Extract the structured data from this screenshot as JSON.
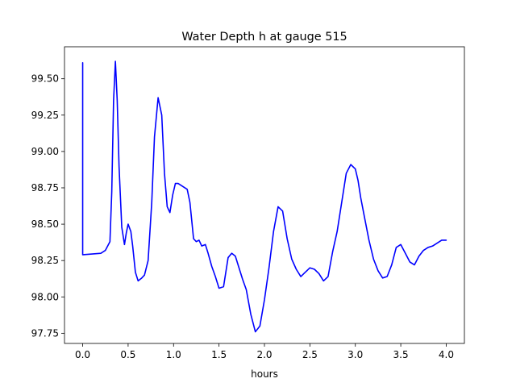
{
  "chart_data": {
    "type": "line",
    "title": "Water Depth h at gauge 515",
    "xlabel": "hours",
    "ylabel": "",
    "xlim": [
      -0.2,
      4.2
    ],
    "ylim": [
      97.68,
      99.72
    ],
    "xticks": [
      0.0,
      0.5,
      1.0,
      1.5,
      2.0,
      2.5,
      3.0,
      3.5,
      4.0
    ],
    "xtick_labels": [
      "0.0",
      "0.5",
      "1.0",
      "1.5",
      "2.0",
      "2.5",
      "3.0",
      "3.5",
      "4.0"
    ],
    "yticks": [
      97.75,
      98.0,
      98.25,
      98.5,
      98.75,
      99.0,
      99.25,
      99.5
    ],
    "ytick_labels": [
      "97.75",
      "98.00",
      "98.25",
      "98.50",
      "98.75",
      "99.00",
      "99.25",
      "99.50"
    ],
    "grid": false,
    "legend": "none",
    "line_color": "#0000ff",
    "series": [
      {
        "x": [
          0.0,
          0.0,
          0.005,
          0.2,
          0.25,
          0.3,
          0.32,
          0.34,
          0.36,
          0.38,
          0.4,
          0.43,
          0.46,
          0.48,
          0.5,
          0.53,
          0.55,
          0.58,
          0.61,
          0.65,
          0.68,
          0.72,
          0.76,
          0.79,
          0.83,
          0.87,
          0.9,
          0.93,
          0.96,
          0.99,
          1.02,
          1.05,
          1.1,
          1.15,
          1.18,
          1.22,
          1.25,
          1.28,
          1.31,
          1.35,
          1.38,
          1.42,
          1.46,
          1.5,
          1.55,
          1.6,
          1.64,
          1.68,
          1.72,
          1.76,
          1.8,
          1.85,
          1.9,
          1.95,
          2.0,
          2.05,
          2.1,
          2.15,
          2.2,
          2.25,
          2.3,
          2.35,
          2.4,
          2.45,
          2.5,
          2.55,
          2.6,
          2.65,
          2.7,
          2.75,
          2.8,
          2.85,
          2.9,
          2.95,
          3.0,
          3.03,
          3.06,
          3.1,
          3.15,
          3.2,
          3.25,
          3.3,
          3.35,
          3.4,
          3.45,
          3.5,
          3.55,
          3.6,
          3.65,
          3.7,
          3.75,
          3.8,
          3.85,
          3.9,
          3.95,
          4.0
        ],
        "y": [
          99.61,
          98.29,
          98.29,
          98.3,
          98.32,
          98.38,
          98.72,
          99.35,
          99.62,
          99.35,
          98.9,
          98.48,
          98.36,
          98.44,
          98.5,
          98.45,
          98.35,
          98.17,
          98.11,
          98.13,
          98.15,
          98.25,
          98.65,
          99.1,
          99.37,
          99.25,
          98.85,
          98.62,
          98.58,
          98.7,
          98.78,
          98.78,
          98.76,
          98.74,
          98.65,
          98.4,
          98.38,
          98.39,
          98.35,
          98.36,
          98.3,
          98.21,
          98.14,
          98.06,
          98.07,
          98.27,
          98.3,
          98.28,
          98.2,
          98.12,
          98.05,
          97.88,
          97.76,
          97.8,
          97.98,
          98.2,
          98.45,
          98.62,
          98.59,
          98.4,
          98.26,
          98.19,
          98.14,
          98.17,
          98.2,
          98.19,
          98.16,
          98.11,
          98.14,
          98.31,
          98.45,
          98.65,
          98.85,
          98.91,
          98.88,
          98.8,
          98.68,
          98.55,
          98.39,
          98.26,
          98.18,
          98.13,
          98.14,
          98.22,
          98.34,
          98.36,
          98.3,
          98.24,
          98.22,
          98.28,
          98.32,
          98.34,
          98.35,
          98.37,
          98.39,
          98.39
        ]
      }
    ]
  }
}
